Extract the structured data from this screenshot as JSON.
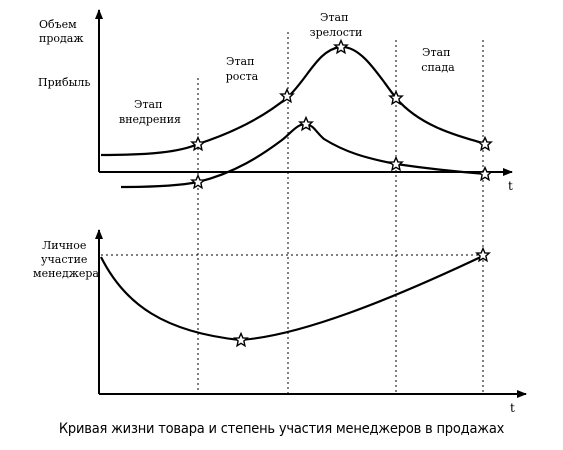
{
  "upper_chart": {
    "y_label_volume": [
      "Объем",
      "продаж"
    ],
    "y_label_profit": "Прибыль",
    "x_label": "t",
    "stages": [
      {
        "id": "introduction",
        "lines": [
          "Этап",
          "внедрения"
        ]
      },
      {
        "id": "growth",
        "lines": [
          "Этап",
          "роста"
        ]
      },
      {
        "id": "maturity",
        "lines": [
          "Этап",
          "зрелости"
        ]
      },
      {
        "id": "decline",
        "lines": [
          "Этап",
          "спада"
        ]
      }
    ],
    "curves": [
      "sales-volume-curve",
      "profit-curve"
    ]
  },
  "lower_chart": {
    "y_label": [
      "Личное",
      "участие",
      "менеджера"
    ],
    "x_label": "t",
    "curves": [
      "manager-involvement-curve"
    ]
  },
  "caption": "Кривая жизни товара и степень участия менеджеров в продажах",
  "colors": {
    "ink": "#000000",
    "background": "#ffffff"
  },
  "marker_icon": "star-icon"
}
